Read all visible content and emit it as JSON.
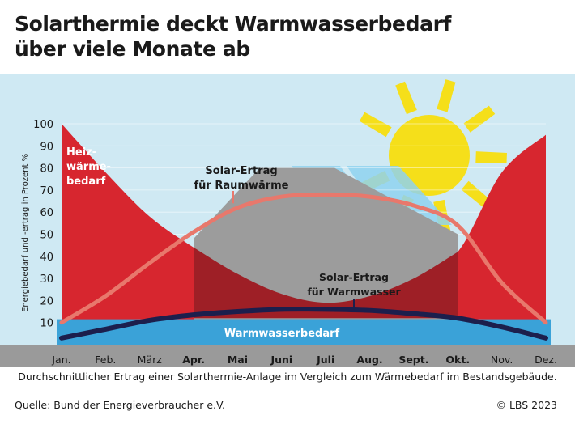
{
  "title_line1": "Solarthermie deckt Warmwasserbedarf",
  "title_line2": "über viele Monate ab",
  "caption": "Durchschnittlicher Ertrag einer  Solarthermie-Anlage im Vergleich zum Wärmebedarf im Bestandsgebäude.",
  "source": "Quelle: Bund der Energieverbraucher e.V.",
  "credit": "© LBS 2023",
  "colors": {
    "sky": "#cfe9f3",
    "heat_demand": "#d7262f",
    "heat_demand_dark": "#b01c24",
    "heat_demand_overlap": "#9e1f26",
    "solar_space": "#e8786c",
    "water_demand": "#3aa2d8",
    "solar_water": "#1c1f4d",
    "house": "#9c9c9c",
    "ground": "#9a9a9a",
    "sun": "#f5df1a",
    "panel": "#8fd2ee"
  },
  "chart_data": {
    "type": "area",
    "ylabel": "Energiebedarf und -ertrag in Prozent %",
    "ylim": [
      0,
      100
    ],
    "yticks": [
      10,
      20,
      30,
      40,
      50,
      60,
      70,
      80,
      90,
      100
    ],
    "categories": [
      "Jan.",
      "Feb.",
      "März",
      "Apr.",
      "Mai",
      "Juni",
      "Juli",
      "Aug.",
      "Sept.",
      "Okt.",
      "Nov.",
      "Dez."
    ],
    "bold_categories": [
      "Apr.",
      "Mai",
      "Juni",
      "Juli",
      "Aug.",
      "Sept.",
      "Okt."
    ],
    "series": [
      {
        "name": "Heizwärmebedarf",
        "label_lines": [
          "Heiz-",
          "wärme-",
          "bedarf"
        ],
        "values": [
          100,
          78,
          58,
          44,
          32,
          23,
          19,
          22,
          30,
          42,
          78,
          95
        ]
      },
      {
        "name": "Solar-Ertrag für Raumwärme",
        "label_lines": [
          "Solar-Ertrag",
          "für Raumwärme"
        ],
        "values": [
          10,
          22,
          37,
          51,
          62,
          67,
          68,
          67,
          63,
          54,
          28,
          10
        ]
      },
      {
        "name": "Warmwasserbedarf",
        "label_lines": [
          "Warmwasserbedarf"
        ],
        "values": [
          11.5,
          11.5,
          11.5,
          11.5,
          11.5,
          11.5,
          11.5,
          11.5,
          11.5,
          11.5,
          11.5,
          11.5
        ]
      },
      {
        "name": "Solar-Ertrag für Warmwasser",
        "label_lines": [
          "Solar-Ertrag",
          "für Warmwasser"
        ],
        "values": [
          3,
          7,
          11,
          13.5,
          15,
          16,
          16,
          15.5,
          14,
          12,
          8,
          3
        ]
      }
    ]
  }
}
